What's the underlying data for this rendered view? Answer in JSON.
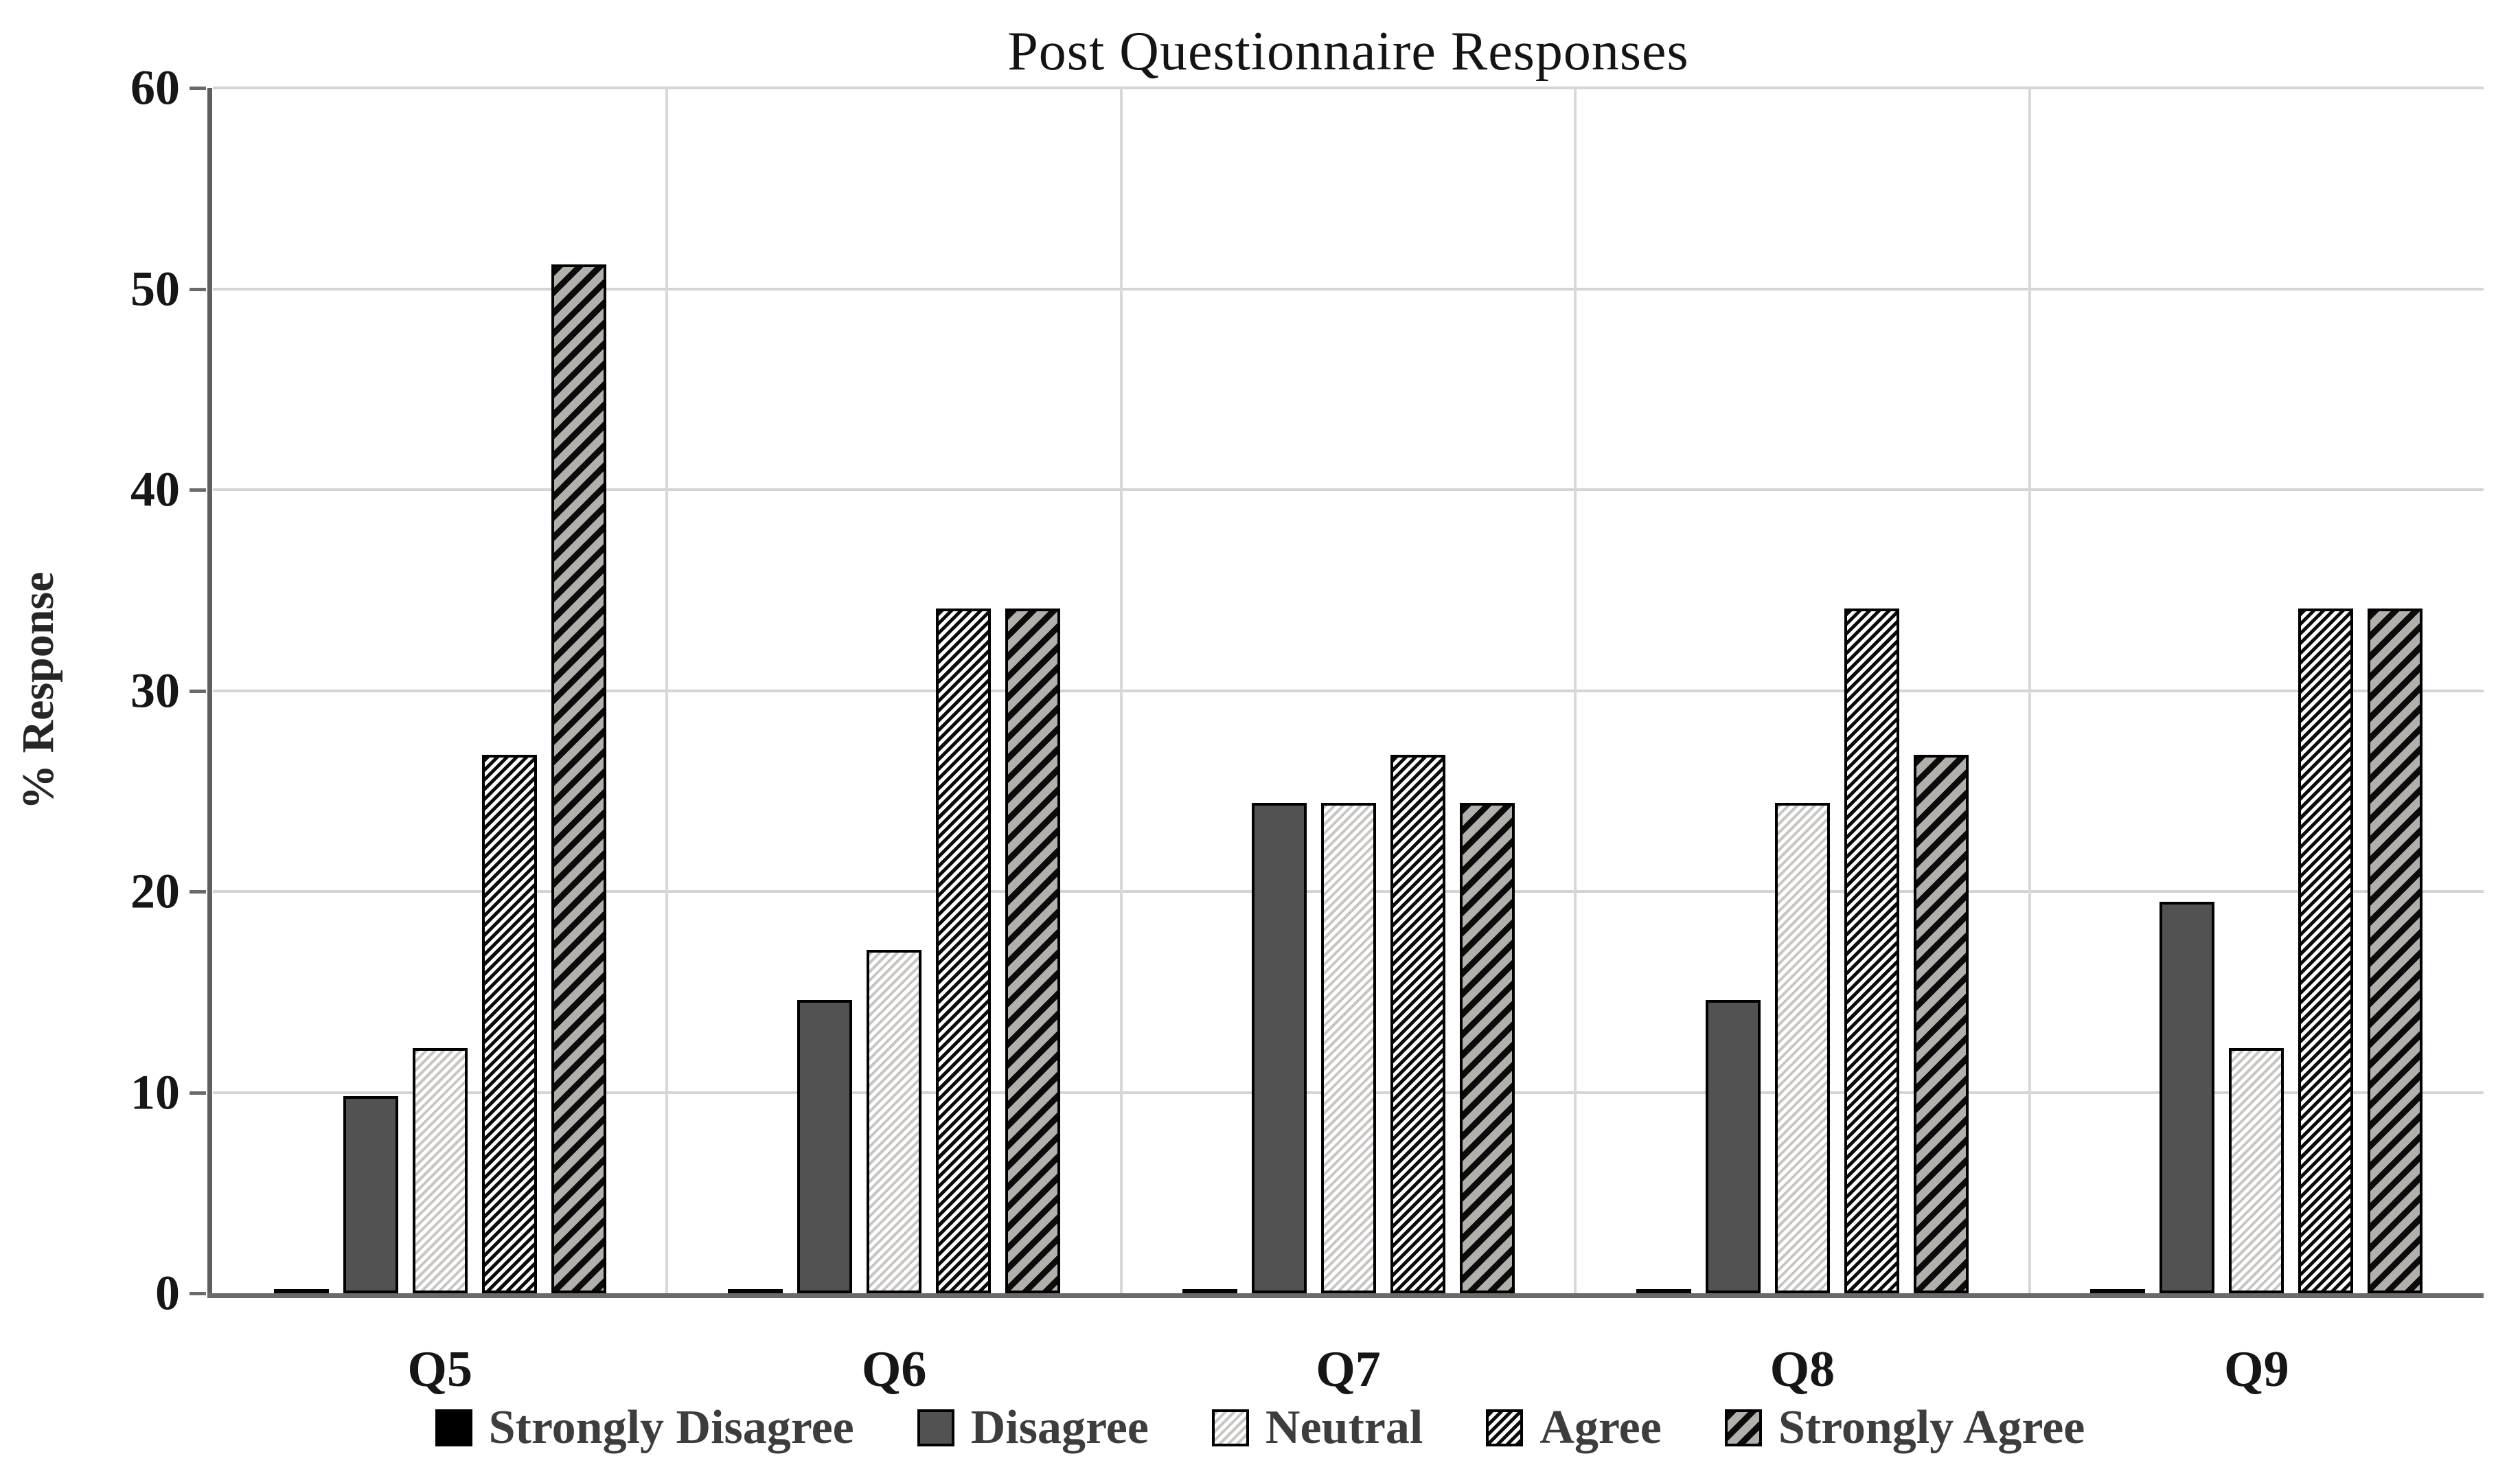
{
  "title": "Post Questionnaire Responses",
  "y_axis": {
    "label": "% Response",
    "tick_labels": [
      "0",
      "10",
      "20",
      "30",
      "40",
      "50",
      "60"
    ]
  },
  "x_axis": {
    "categories": [
      "Q5",
      "Q6",
      "Q7",
      "Q8",
      "Q9"
    ]
  },
  "legend": [
    "Strongly Disagree",
    "Disagree",
    "Neutral",
    "Agree",
    "Strongly Agree"
  ],
  "chart_data": {
    "type": "bar",
    "title": "Post Questionnaire Responses",
    "xlabel": "",
    "ylabel": "% Response",
    "ylim": [
      0,
      60
    ],
    "y_ticks": [
      0,
      10,
      20,
      30,
      40,
      50,
      60
    ],
    "grid": true,
    "legend_position": "bottom",
    "categories": [
      "Q5",
      "Q6",
      "Q7",
      "Q8",
      "Q9"
    ],
    "series": [
      {
        "name": "Strongly Disagree",
        "swatch": "solid-black",
        "values": [
          0.2,
          0.2,
          0.2,
          0.2,
          0.2
        ]
      },
      {
        "name": "Disagree",
        "swatch": "solid-dark-gray",
        "values": [
          9.8,
          14.6,
          24.4,
          14.6,
          19.5
        ]
      },
      {
        "name": "Neutral",
        "swatch": "light-gray-diagonal-hatch",
        "values": [
          12.2,
          17.1,
          24.4,
          24.4,
          12.2
        ]
      },
      {
        "name": "Agree",
        "swatch": "dense-black-diagonal-hatch",
        "values": [
          26.8,
          34.1,
          26.8,
          34.1,
          34.1
        ]
      },
      {
        "name": "Strongly Agree",
        "swatch": "gray-black-diagonal-hatch",
        "values": [
          51.2,
          34.1,
          24.4,
          26.8,
          34.1
        ]
      }
    ]
  },
  "colors": {
    "background": "#ffffff",
    "gridline": "#d4d4d4",
    "axis_line": "#6a6a6a",
    "tick_text": "#161616",
    "title_text": "#141414",
    "legend_text": "#3d3d3d",
    "bar_border": "#000000",
    "disagree_fill": "#525252",
    "strongly_agree_background": "#b3afab",
    "neutral_stripe": "#c9c5c3"
  }
}
